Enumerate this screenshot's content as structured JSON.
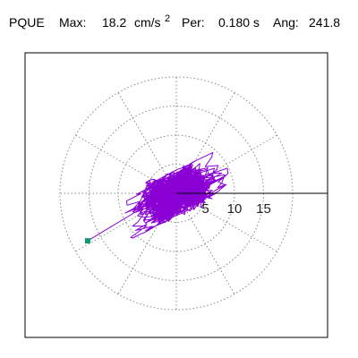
{
  "header": {
    "station": "PQUE",
    "max_label": "Max:",
    "max_value": "18.2",
    "max_unit": "cm/s",
    "max_unit_sup": "2",
    "period_label": "Per:",
    "period_value": "0.180 s",
    "angle_label": "Ang:",
    "angle_value": "241.8"
  },
  "colors": {
    "trace": "#8a00d4",
    "peak_marker": "#0a9b6e",
    "frame": "#000000",
    "grid": "#888888"
  },
  "chart_data": {
    "type": "polar-particle-motion",
    "title": "PQUE Max: 18.2 cm/s2 Per: 0.180 s Ang: 241.8",
    "radial_ticks": [
      "5",
      "10",
      "15"
    ],
    "radial_tick_values": [
      5,
      10,
      15
    ],
    "rings": [
      5,
      10,
      15,
      20
    ],
    "spokes_deg": [
      0,
      30,
      60,
      90,
      120,
      150,
      180,
      210,
      240,
      270,
      300,
      330
    ],
    "r_max": 20,
    "grid": true,
    "peak": {
      "amplitude": 18.2,
      "angle_deg": 241.8,
      "angle_convention": "degrees clockwise from north"
    },
    "trace_seed": 7,
    "trace_points": 1500
  }
}
